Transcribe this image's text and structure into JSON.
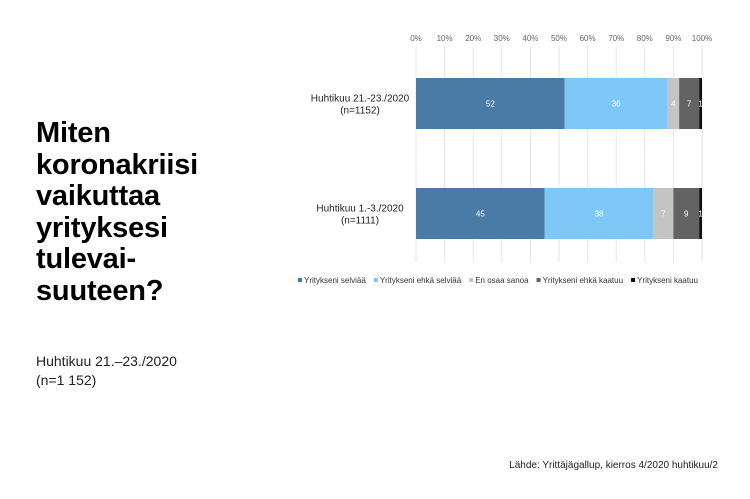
{
  "question": "Miten\nkoronakriisi\nvaikuttaa\nyrityksesi\ntulevai-\nsuuteen?",
  "subtitle": "Huhtikuu 21.–23./2020\n(n=1 152)",
  "source": "Lähde: Yrittäjägallup, kierros 4/2020 huhtikuu/2",
  "chart_data": {
    "type": "bar",
    "orientation": "horizontal",
    "stacked": true,
    "categories": [
      "Huhtikuu 21.-23./2020\n(n=1152)",
      "Huhtikuu 1.-3./2020\n(n=1111)"
    ],
    "series": [
      {
        "name": "Yritykseni selviää",
        "values": [
          52,
          45
        ],
        "color": "#4a7aa6",
        "label_color": "#ffffff"
      },
      {
        "name": "Yritykseni ehkä selviää",
        "values": [
          36,
          38
        ],
        "color": "#7ec8f8",
        "label_color": "#ffffff"
      },
      {
        "name": "En osaa sanoa",
        "values": [
          4,
          7
        ],
        "color": "#c4c4c4",
        "label_color": "#ffffff"
      },
      {
        "name": "Yritykseni ehkä kaatuu",
        "values": [
          7,
          9
        ],
        "color": "#636363",
        "label_color": "#ffffff"
      },
      {
        "name": "Yritykseni kaatuu",
        "values": [
          1,
          1
        ],
        "color": "#111111",
        "label_color": "#ffffff"
      }
    ],
    "xlim": [
      0,
      100
    ],
    "ticks": [
      "0%",
      "10%",
      "20%",
      "30%",
      "40%",
      "50%",
      "60%",
      "70%",
      "80%",
      "90%",
      "100%"
    ],
    "grid": true,
    "legend": "bottom"
  }
}
